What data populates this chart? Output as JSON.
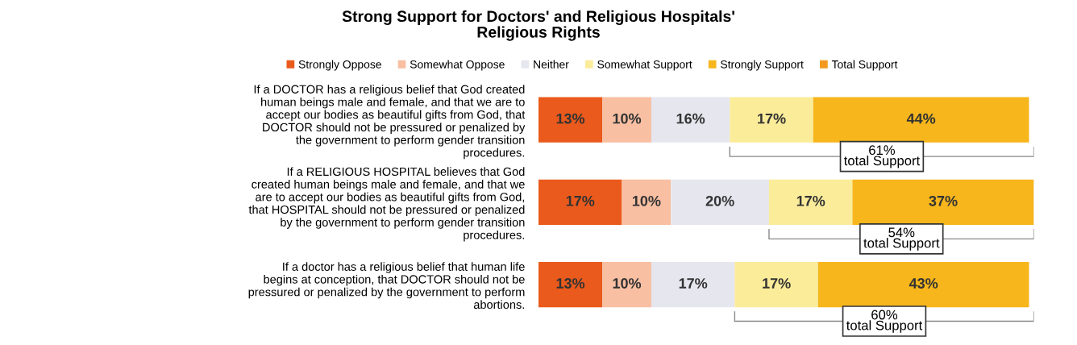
{
  "chart_data": {
    "type": "bar",
    "orientation": "horizontal",
    "stacked": true,
    "legend": "top",
    "grid": false,
    "tick_labels": "y",
    "title": "Strong Support for Doctors' and Religious Hospitals'\nReligious Rights",
    "categories": [
      "If a DOCTOR has a religious belief that God created\nhuman beings male and female, and that we are to\naccept our bodies as beautiful gifts from God, that\nDOCTOR should not be pressured or penalized by\nthe government to perform gender transition\nprocedures.",
      "If a RELIGIOUS HOSPITAL believes that God\ncreated human beings male and female, and that we\nare to accept our bodies as beautiful gifts from God,\nthat HOSPITAL should not be pressured or penalized\nby the government to perform gender transition\nprocedures.",
      "If a doctor has a religious belief that human life\nbegins at conception, that DOCTOR should not be\npressured or penalized by the government to perform\nabortions."
    ],
    "series": [
      {
        "name": "Strongly Oppose",
        "color": "#ea5a1c",
        "values": [
          13,
          17,
          13
        ],
        "value_labels": [
          "13%",
          "17%",
          "13%"
        ]
      },
      {
        "name": "Somewhat Oppose",
        "color": "#f8bfa2",
        "values": [
          10,
          10,
          10
        ],
        "value_labels": [
          "10%",
          "10%",
          "10%"
        ]
      },
      {
        "name": "Neither",
        "color": "#e6e6ef",
        "values": [
          16,
          20,
          17
        ],
        "value_labels": [
          "16%",
          "20%",
          "17%"
        ]
      },
      {
        "name": "Somewhat Support",
        "color": "#fbec9a",
        "values": [
          17,
          17,
          17
        ],
        "value_labels": [
          "17%",
          "17%",
          "17%"
        ]
      },
      {
        "name": "Strongly Support",
        "color": "#f6b61c",
        "values": [
          44,
          37,
          43
        ],
        "value_labels": [
          "44%",
          "37%",
          "43%"
        ]
      },
      {
        "name": "Total Support",
        "color": "#f29a1e",
        "values": [
          null,
          null,
          null
        ]
      }
    ],
    "annotations": [
      "61%\ntotal Support",
      "54%\ntotal Support",
      "60%\ntotal Support"
    ]
  }
}
